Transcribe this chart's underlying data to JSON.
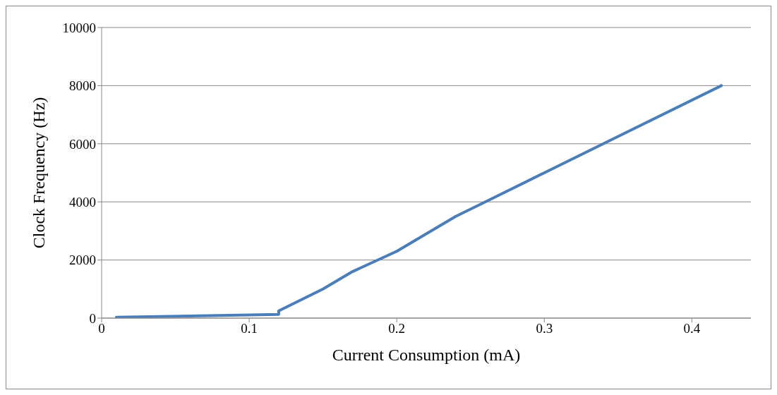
{
  "chart_data": {
    "type": "line",
    "xlabel": "Current  Consumption (mA)",
    "ylabel": "Clock Frequency (Hz)",
    "x": [
      0.01,
      0.12,
      0.12,
      0.15,
      0.17,
      0.2,
      0.24,
      0.26,
      0.3,
      0.34,
      0.42
    ],
    "series": [
      {
        "color": "#4a7ebb",
        "values": [
          30,
          130,
          250,
          1000,
          1600,
          2300,
          3500,
          4000,
          5000,
          6000,
          8000
        ]
      }
    ],
    "xlim": [
      0,
      0.44
    ],
    "xticks": [
      0,
      0.1,
      0.2,
      0.3,
      0.4
    ],
    "ylim": [
      0,
      10000
    ],
    "yticks": [
      0,
      2000,
      4000,
      6000,
      8000,
      10000
    ],
    "grid": "y",
    "marker": "none",
    "line_style": "solid"
  }
}
